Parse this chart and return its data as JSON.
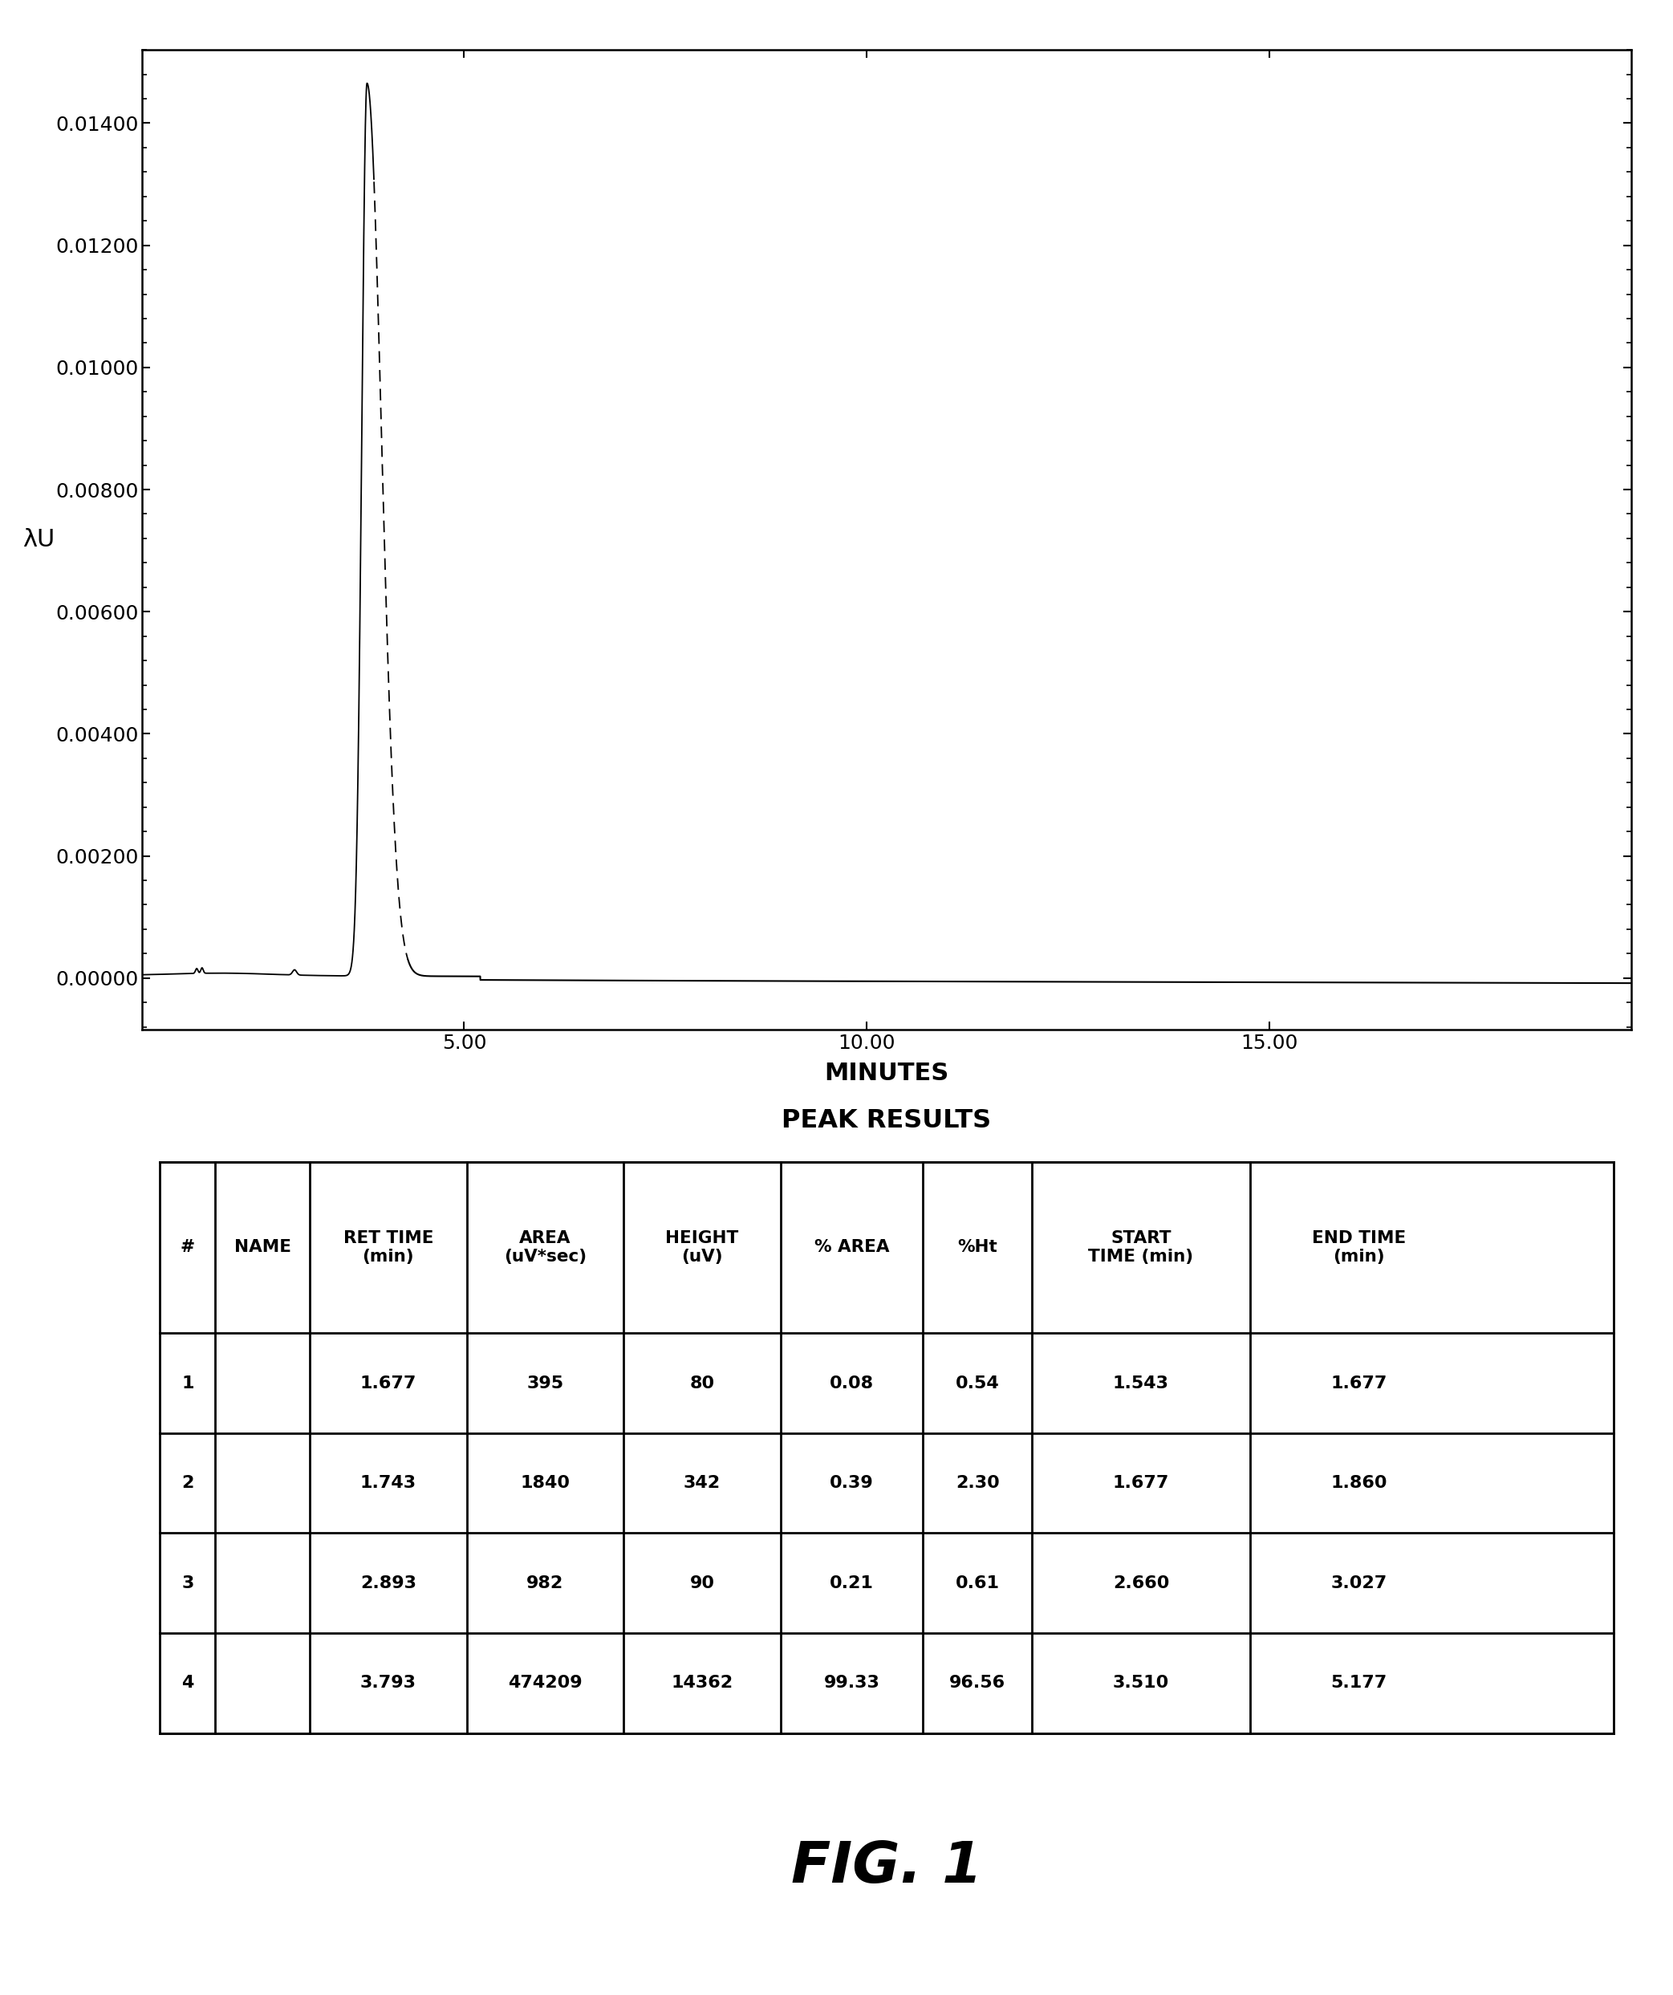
{
  "title": "FIG. 1",
  "ylabel": "λU",
  "xlabel": "MINUTES",
  "ylim": [
    -0.00085,
    0.0152
  ],
  "xlim": [
    1.0,
    19.5
  ],
  "yticks": [
    0.0,
    0.002,
    0.004,
    0.006,
    0.008,
    0.01,
    0.012,
    0.014
  ],
  "ytick_labels": [
    "0.00000",
    "0.00200",
    "0.00400",
    "0.00600",
    "0.00800",
    "0.01000",
    "0.01200",
    "0.01400"
  ],
  "xticks": [
    5.0,
    10.0,
    15.0
  ],
  "xtick_labels": [
    "5.00",
    "10.00",
    "15.00"
  ],
  "peak_results_title": "PEAK RESULTS",
  "table_headers": [
    "#",
    "NAME",
    "RET TIME\n(min)",
    "AREA\n(uV*sec)",
    "HEIGHT\n(uV)",
    "% AREA",
    "%Ht",
    "START\nTIME (min)",
    "END TIME\n(min)"
  ],
  "table_data": [
    [
      "1",
      "",
      "1.677",
      "395",
      "80",
      "0.08",
      "0.54",
      "1.543",
      "1.677"
    ],
    [
      "2",
      "",
      "1.743",
      "1840",
      "342",
      "0.39",
      "2.30",
      "1.677",
      "1.860"
    ],
    [
      "3",
      "",
      "2.893",
      "982",
      "90",
      "0.21",
      "0.61",
      "2.660",
      "3.027"
    ],
    [
      "4",
      "",
      "3.793",
      "474209",
      "14362",
      "99.33",
      "96.56",
      "3.510",
      "5.177"
    ]
  ],
  "col_widths": [
    0.038,
    0.065,
    0.108,
    0.108,
    0.108,
    0.098,
    0.075,
    0.15,
    0.15
  ],
  "background_color": "#ffffff",
  "line_color": "#000000"
}
